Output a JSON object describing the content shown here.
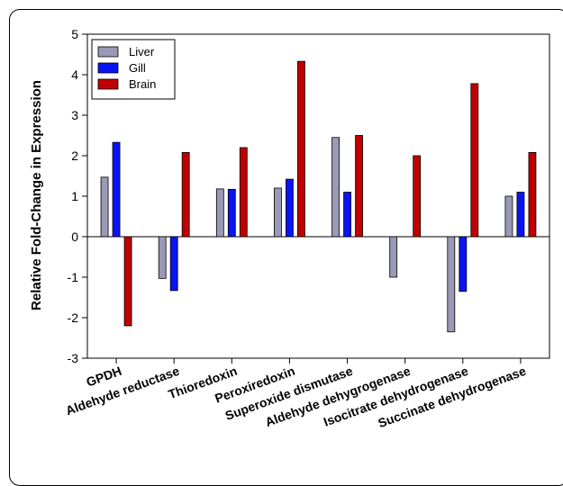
{
  "chart_data": {
    "type": "bar",
    "title": "",
    "xlabel": "",
    "ylabel": "Relative Fold-Change in Expression",
    "ylim": [
      -3,
      5
    ],
    "yticks": [
      -3,
      -2,
      -1,
      0,
      1,
      2,
      3,
      4,
      5
    ],
    "grid": false,
    "legend_position": "top-left",
    "categories": [
      "GPDH",
      "Aldehyde reductase",
      "Thioredoxin",
      "Peroxiredoxin",
      "Superoxide dismutase",
      "Aldehyde dehygrogenase",
      "Isocitrate dehydrogenase",
      "Succinate dehydrogenase"
    ],
    "series": [
      {
        "name": "Liver",
        "color": "#9a9ab6",
        "values": [
          1.47,
          -1.03,
          1.18,
          1.2,
          2.45,
          -1.0,
          -2.35,
          1.0
        ]
      },
      {
        "name": "Gill",
        "color": "#0a14f2",
        "values": [
          2.33,
          -1.33,
          1.17,
          1.42,
          1.1,
          0,
          -1.35,
          1.1
        ]
      },
      {
        "name": "Brain",
        "color": "#c00000",
        "values": [
          -2.2,
          2.08,
          2.2,
          4.33,
          2.5,
          2.0,
          3.78,
          2.08
        ]
      }
    ]
  }
}
